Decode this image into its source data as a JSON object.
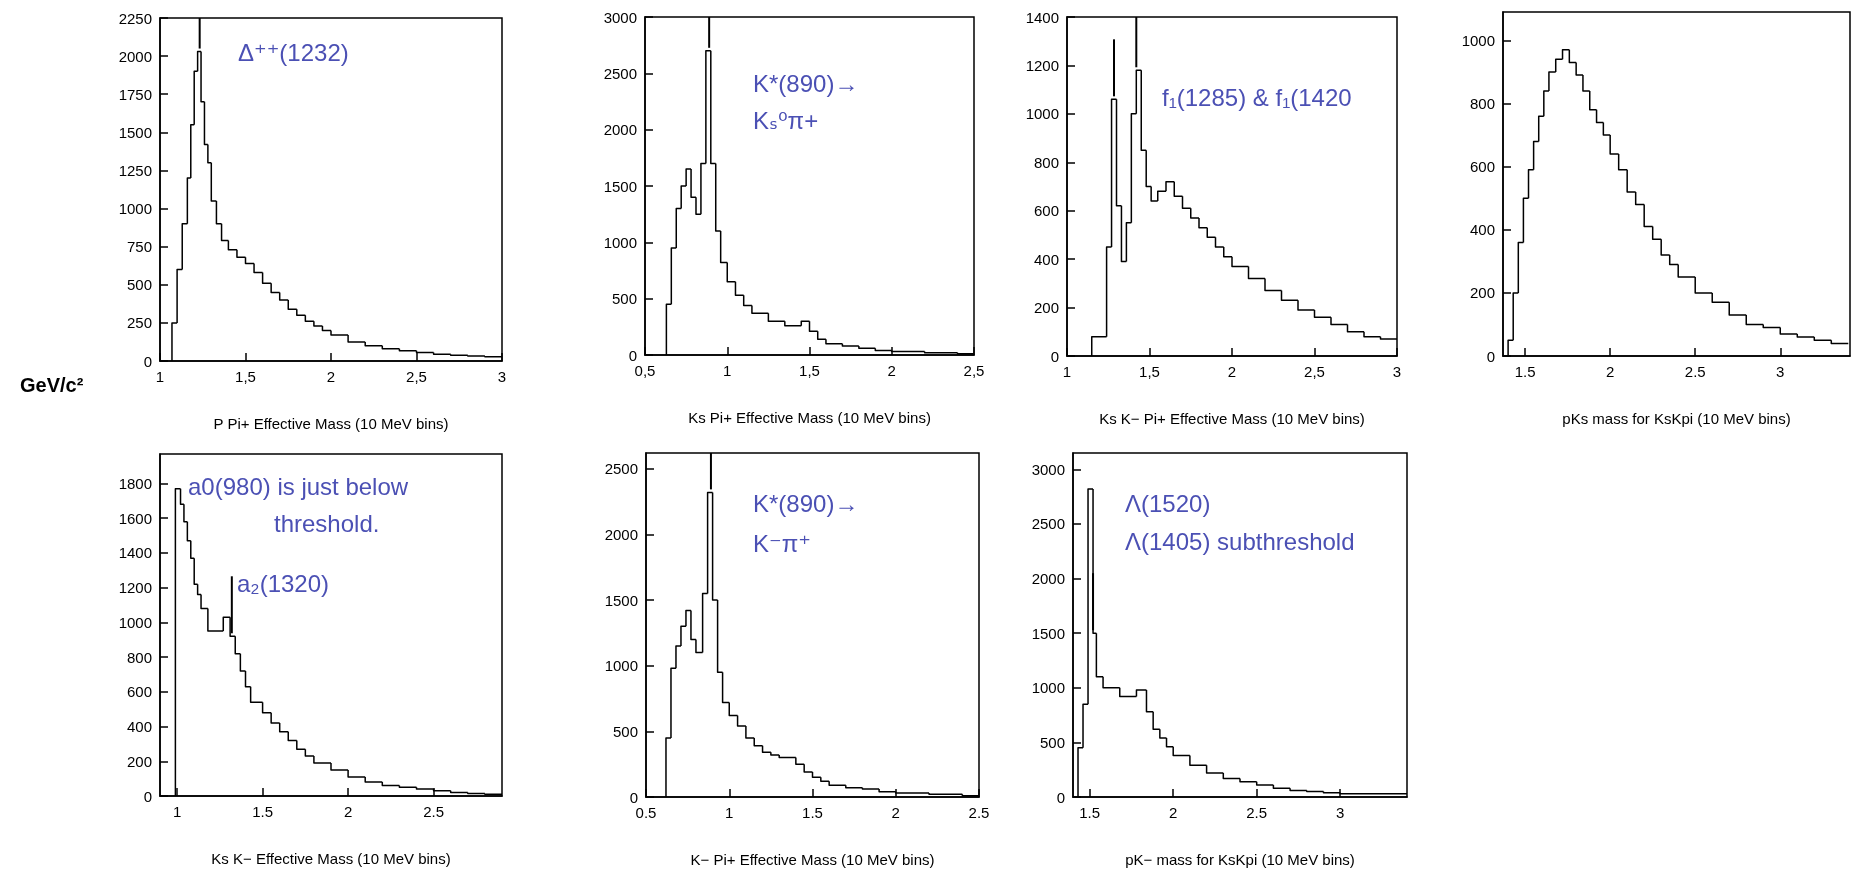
{
  "chart_data": [
    {
      "type": "histogram",
      "xlabel": "P Pi+ Effective Mass (10 MeV bins)",
      "color": "#000000",
      "grid": false,
      "bins": [
        1.07,
        1.1,
        1.13,
        1.16,
        1.18,
        1.2,
        1.22,
        1.24,
        1.26,
        1.28,
        1.3,
        1.33,
        1.36,
        1.4,
        1.45,
        1.5,
        1.55,
        1.6,
        1.65,
        1.7,
        1.75,
        1.8,
        1.85,
        1.9,
        1.95,
        2.0,
        2.1,
        2.2,
        2.3,
        2.4,
        2.5,
        2.6,
        2.7,
        2.8,
        2.9,
        3.0
      ],
      "values": [
        250,
        600,
        900,
        1200,
        1550,
        1900,
        2030,
        1700,
        1420,
        1300,
        1050,
        900,
        790,
        730,
        680,
        640,
        580,
        510,
        450,
        400,
        340,
        300,
        260,
        230,
        200,
        170,
        125,
        100,
        80,
        68,
        55,
        45,
        38,
        33,
        28
      ],
      "xlim": [
        1,
        3
      ],
      "xticks": [
        1,
        {
          "value": 1.5,
          "label": "1,5"
        },
        2,
        {
          "value": 2.5,
          "label": "2,5"
        },
        3
      ],
      "ylim": [
        0,
        2250
      ],
      "yticks": [
        0,
        250,
        500,
        750,
        1000,
        1250,
        1500,
        1750,
        2000,
        2250
      ],
      "ref_lines": [
        {
          "axis": "x",
          "value": 1.232
        }
      ],
      "annotations": [
        "Δ⁺⁺(1232)",
        "GeV/c²"
      ]
    },
    {
      "type": "histogram",
      "xlabel": "Ks Pi+ Effective Mass (10 MeV bins)",
      "color": "#000000",
      "grid": false,
      "bins": [
        0.63,
        0.66,
        0.69,
        0.72,
        0.75,
        0.78,
        0.81,
        0.84,
        0.87,
        0.9,
        0.93,
        0.96,
        1.0,
        1.05,
        1.1,
        1.15,
        1.25,
        1.35,
        1.45,
        1.5,
        1.55,
        1.6,
        1.7,
        1.8,
        1.9,
        2.0,
        2.2,
        2.4,
        2.5
      ],
      "values": [
        450,
        950,
        1300,
        1500,
        1650,
        1400,
        1250,
        1700,
        2700,
        1700,
        1100,
        820,
        650,
        530,
        440,
        370,
        300,
        260,
        300,
        210,
        140,
        100,
        80,
        60,
        40,
        30,
        20,
        10
      ],
      "xlim": [
        0.5,
        2.5
      ],
      "xticks": [
        {
          "value": 0.5,
          "label": "0,5"
        },
        1,
        {
          "value": 1.5,
          "label": "1,5"
        },
        2,
        {
          "value": 2.5,
          "label": "2,5"
        }
      ],
      "ylim": [
        0,
        3000
      ],
      "yticks": [
        0,
        500,
        1000,
        1500,
        2000,
        2500,
        3000
      ],
      "ref_lines": [
        {
          "axis": "x",
          "value": 0.89
        }
      ],
      "annotations": [
        "K*(890)→",
        "Kₛ⁰π+"
      ]
    },
    {
      "type": "histogram",
      "xlabel": "Ks K− Pi+ Effective Mass (10 MeV bins)",
      "color": "#000000",
      "grid": false,
      "bins": [
        1.15,
        1.24,
        1.27,
        1.3,
        1.33,
        1.36,
        1.39,
        1.42,
        1.45,
        1.48,
        1.51,
        1.55,
        1.6,
        1.65,
        1.7,
        1.75,
        1.8,
        1.85,
        1.9,
        1.95,
        2.0,
        2.1,
        2.2,
        2.3,
        2.4,
        2.5,
        2.6,
        2.7,
        2.8,
        2.9,
        3.0
      ],
      "values": [
        80,
        450,
        1060,
        620,
        390,
        550,
        1000,
        1180,
        850,
        700,
        640,
        680,
        720,
        660,
        610,
        570,
        530,
        490,
        450,
        410,
        370,
        320,
        270,
        230,
        190,
        160,
        130,
        100,
        80,
        70
      ],
      "xlim": [
        1,
        3
      ],
      "xticks": [
        1,
        {
          "value": 1.5,
          "label": "1,5"
        },
        2,
        {
          "value": 2.5,
          "label": "2,5"
        },
        3
      ],
      "ylim": [
        0,
        1400
      ],
      "yticks": [
        0,
        200,
        400,
        600,
        800,
        1000,
        1200,
        1400
      ],
      "ref_lines": [
        {
          "axis": "x",
          "value": 1.285
        },
        {
          "axis": "x",
          "value": 1.42
        }
      ],
      "annotations": [
        "f₁(1285) & f₁(1420"
      ]
    },
    {
      "type": "histogram",
      "xlabel": "pKs mass for KsKpi (10 MeV bins)",
      "color": "#000000",
      "grid": false,
      "bins": [
        1.4,
        1.43,
        1.46,
        1.49,
        1.52,
        1.55,
        1.58,
        1.61,
        1.64,
        1.68,
        1.72,
        1.76,
        1.8,
        1.84,
        1.88,
        1.92,
        1.96,
        2.0,
        2.05,
        2.1,
        2.15,
        2.2,
        2.25,
        2.3,
        2.35,
        2.4,
        2.5,
        2.6,
        2.7,
        2.8,
        2.9,
        3.0,
        3.1,
        3.2,
        3.3,
        3.4
      ],
      "values": [
        50,
        200,
        360,
        500,
        590,
        680,
        760,
        840,
        900,
        940,
        970,
        930,
        890,
        840,
        780,
        740,
        700,
        640,
        590,
        520,
        480,
        410,
        370,
        320,
        290,
        250,
        200,
        170,
        130,
        100,
        90,
        70,
        60,
        50,
        40
      ],
      "xlim": [
        1.37,
        3.41
      ],
      "xticks": [
        1.5,
        2,
        2.5,
        3
      ],
      "ylim": [
        0,
        1090
      ],
      "yticks": [
        0,
        200,
        400,
        600,
        800,
        1000
      ]
    },
    {
      "type": "histogram",
      "xlabel": "Ks K− Effective Mass (10 MeV bins)",
      "color": "#000000",
      "grid": false,
      "bins": [
        0.99,
        1.02,
        1.04,
        1.06,
        1.08,
        1.1,
        1.12,
        1.14,
        1.18,
        1.27,
        1.31,
        1.34,
        1.37,
        1.4,
        1.43,
        1.5,
        1.55,
        1.6,
        1.65,
        1.7,
        1.75,
        1.8,
        1.9,
        2.0,
        2.1,
        2.2,
        2.3,
        2.4,
        2.5,
        2.6,
        2.7,
        2.8,
        2.9
      ],
      "values": [
        1770,
        1680,
        1580,
        1470,
        1370,
        1220,
        1160,
        1080,
        950,
        1030,
        920,
        820,
        720,
        630,
        540,
        480,
        420,
        370,
        320,
        270,
        230,
        190,
        150,
        110,
        80,
        60,
        50,
        40,
        30,
        20,
        15,
        10
      ],
      "xlim": [
        0.9,
        2.9
      ],
      "xticks": [
        1,
        1.5,
        2,
        2.5
      ],
      "ylim": [
        0,
        1970
      ],
      "yticks": [
        0,
        200,
        400,
        600,
        800,
        1000,
        1200,
        1400,
        1600,
        1800
      ],
      "ref_lines": [
        {
          "axis": "x",
          "value": 1.32
        }
      ],
      "annotations": [
        "a0(980) is just below",
        "threshold.",
        "a₂(1320)"
      ]
    },
    {
      "type": "histogram",
      "xlabel": "K− Pi+ Effective Mass (10 MeV bins)",
      "color": "#000000",
      "grid": false,
      "bins": [
        0.62,
        0.65,
        0.68,
        0.71,
        0.74,
        0.77,
        0.8,
        0.84,
        0.87,
        0.9,
        0.93,
        0.96,
        1.0,
        1.05,
        1.1,
        1.15,
        1.2,
        1.25,
        1.3,
        1.4,
        1.45,
        1.5,
        1.55,
        1.6,
        1.7,
        1.8,
        1.9,
        2.0,
        2.2,
        2.4,
        2.5
      ],
      "values": [
        450,
        980,
        1150,
        1300,
        1420,
        1200,
        1100,
        1550,
        2320,
        1500,
        950,
        720,
        620,
        540,
        450,
        390,
        340,
        320,
        300,
        250,
        190,
        150,
        120,
        90,
        70,
        60,
        40,
        30,
        20,
        10
      ],
      "xlim": [
        0.5,
        2.5
      ],
      "xticks": [
        0.5,
        1,
        1.5,
        2,
        2.5
      ],
      "ylim": [
        0,
        2620
      ],
      "yticks": [
        0,
        500,
        1000,
        1500,
        2000,
        2500
      ],
      "ref_lines": [
        {
          "axis": "x",
          "value": 0.89
        }
      ],
      "annotations": [
        "K*(890)→",
        "K⁻π⁺"
      ]
    },
    {
      "type": "histogram",
      "xlabel": "pK− mass for KsKpi (10 MeV bins)",
      "color": "#000000",
      "grid": false,
      "bins": [
        1.43,
        1.46,
        1.49,
        1.52,
        1.54,
        1.58,
        1.68,
        1.78,
        1.84,
        1.88,
        1.92,
        1.96,
        2.0,
        2.1,
        2.2,
        2.3,
        2.4,
        2.5,
        2.6,
        2.7,
        2.8,
        2.9,
        3.0,
        3.4
      ],
      "values": [
        450,
        850,
        2820,
        1500,
        1100,
        1000,
        920,
        980,
        780,
        620,
        540,
        460,
        380,
        290,
        220,
        170,
        140,
        110,
        80,
        60,
        50,
        40,
        30
      ],
      "xlim": [
        1.4,
        3.4
      ],
      "xticks": [
        1.5,
        2,
        2.5,
        3
      ],
      "ylim": [
        0,
        3150
      ],
      "yticks": [
        0,
        500,
        1000,
        1500,
        2000,
        2500,
        3000
      ],
      "ref_lines": [
        {
          "axis": "x",
          "value": 1.52
        }
      ],
      "annotations": [
        "Λ(1520)",
        "Λ(1405) subthreshold"
      ]
    }
  ]
}
